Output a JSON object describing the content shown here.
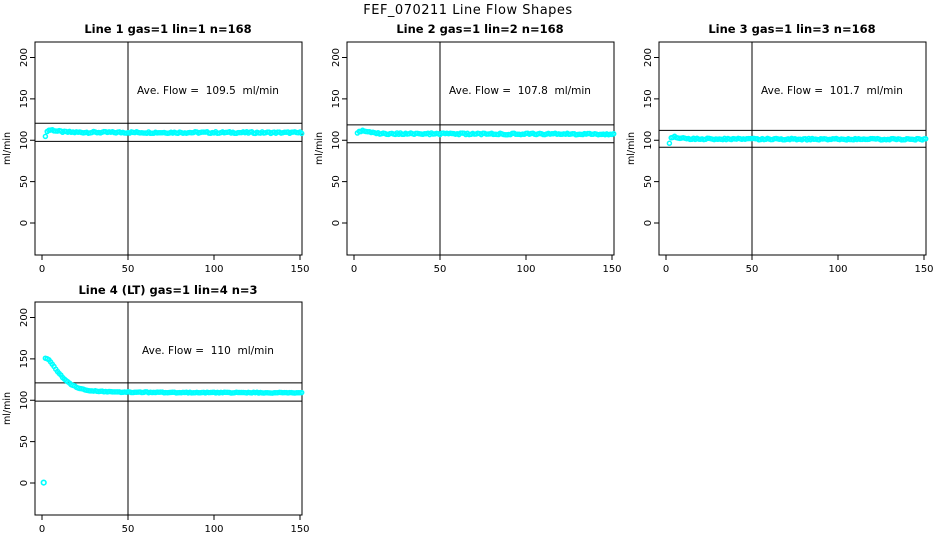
{
  "chart_data": {
    "type": "scatter",
    "title": "FEF_070211  Line Flow Shapes",
    "point_color": "#00FFFF",
    "axis_color": "#000000",
    "ylabel": "ml/min",
    "x_ticks": [
      0,
      50,
      100,
      150
    ],
    "y_ticks": [
      0,
      50,
      100,
      150,
      200
    ],
    "xlim": [
      -4,
      155
    ],
    "ylim": [
      -38,
      219
    ],
    "grid": false,
    "legend": "none",
    "marker": "open-circle",
    "plots": [
      {
        "title": "Line 1 gas=1 lin=1 n=168",
        "ave_flow": 109.5,
        "annotation": "Ave. Flow =  109.5  ml/min",
        "vline_x": 50,
        "hlines": [
          120.5,
          98.6
        ],
        "x_start": 2,
        "x_end": 151,
        "jitter": 1.0,
        "series_anchors": [
          [
            2,
            105.5
          ],
          [
            3,
            110.5
          ],
          [
            4,
            112.3
          ],
          [
            6,
            112.5
          ],
          [
            9,
            111
          ],
          [
            13,
            110
          ],
          [
            20,
            109.6
          ],
          [
            60,
            109.4
          ],
          [
            151,
            109.2
          ]
        ],
        "isolated_points": []
      },
      {
        "title": "Line 2 gas=1 lin=2 n=168",
        "ave_flow": 107.8,
        "annotation": "Ave. Flow =  107.8  ml/min",
        "vline_x": 50,
        "hlines": [
          118.6,
          97.0
        ],
        "x_start": 2,
        "x_end": 151,
        "jitter": 1.0,
        "series_anchors": [
          [
            2,
            108
          ],
          [
            3,
            110.8
          ],
          [
            5,
            111.5
          ],
          [
            8,
            109.8
          ],
          [
            12,
            108.5
          ],
          [
            20,
            107.9
          ],
          [
            60,
            107.7
          ],
          [
            151,
            107.4
          ]
        ],
        "isolated_points": []
      },
      {
        "title": "Line 3 gas=1 lin=3 n=168",
        "ave_flow": 101.7,
        "annotation": "Ave. Flow =  101.7  ml/min",
        "vline_x": 50,
        "hlines": [
          111.9,
          91.5
        ],
        "x_start": 2,
        "x_end": 151,
        "jitter": 0.9,
        "series_anchors": [
          [
            2,
            97
          ],
          [
            3,
            102.5
          ],
          [
            5,
            104.3
          ],
          [
            8,
            103
          ],
          [
            12,
            102
          ],
          [
            20,
            101.6
          ],
          [
            60,
            101.4
          ],
          [
            151,
            101.1
          ]
        ],
        "isolated_points": []
      },
      {
        "title": "Line 4 (LT) gas=1 lin=4 n=3",
        "ave_flow": 110,
        "annotation": "Ave. Flow =  110  ml/min",
        "vline_x": 50,
        "hlines": [
          121.0,
          99.0
        ],
        "x_start": 2,
        "x_end": 151,
        "jitter": 0.5,
        "series_anchors": [
          [
            2,
            150.5
          ],
          [
            3,
            150
          ],
          [
            4,
            148.5
          ],
          [
            5,
            146.5
          ],
          [
            6,
            144
          ],
          [
            7,
            141
          ],
          [
            8,
            138
          ],
          [
            9,
            135
          ],
          [
            10,
            132.5
          ],
          [
            11,
            130
          ],
          [
            12,
            127.5
          ],
          [
            13,
            125.5
          ],
          [
            14,
            123.5
          ],
          [
            15,
            122
          ],
          [
            16,
            120.5
          ],
          [
            17,
            119
          ],
          [
            18,
            118
          ],
          [
            19,
            117
          ],
          [
            20,
            116
          ],
          [
            22,
            114.5
          ],
          [
            24,
            113.3
          ],
          [
            26,
            112.5
          ],
          [
            28,
            111.8
          ],
          [
            31,
            111.2
          ],
          [
            35,
            110.7
          ],
          [
            40,
            110.2
          ],
          [
            50,
            109.8
          ],
          [
            65,
            109.5
          ],
          [
            85,
            109.3
          ],
          [
            120,
            109.2
          ],
          [
            151,
            109.0
          ]
        ],
        "isolated_points": [
          [
            1,
            0.5
          ]
        ]
      }
    ]
  }
}
